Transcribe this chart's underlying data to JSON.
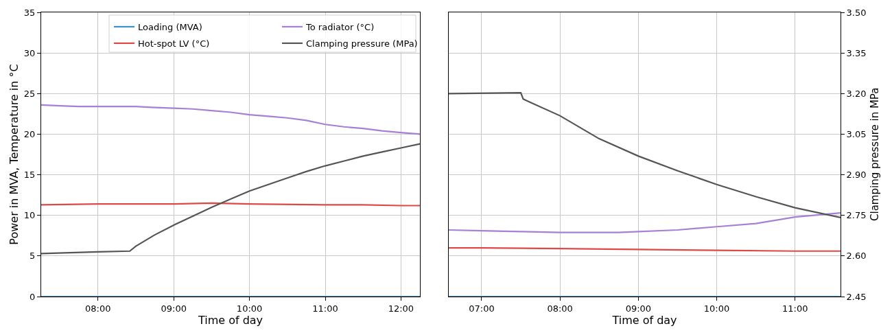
{
  "chart_data": [
    {
      "type": "line",
      "xlabel": "Time of day",
      "ylabel": "Power in MVA, Temperature in °C",
      "xlim": [
        7.25,
        12.25
      ],
      "xticks": [
        {
          "value": 8,
          "label": "08:00"
        },
        {
          "value": 9,
          "label": "09:00"
        },
        {
          "value": 10,
          "label": "10:00"
        },
        {
          "value": 11,
          "label": "11:00"
        },
        {
          "value": 12,
          "label": "12:00"
        }
      ],
      "ylim": [
        0,
        35
      ],
      "yticks": [
        0,
        5,
        10,
        15,
        20,
        25,
        30,
        35
      ],
      "y2lim": [
        2.45,
        3.5
      ],
      "grid": true,
      "legend": "top right",
      "series": [
        {
          "name": "Loading (MVA)",
          "color": "#3a8fd0",
          "x": [
            7.25,
            12.25
          ],
          "values": [
            0,
            0
          ]
        },
        {
          "name": "Hot-spot LV (°C)",
          "color": "#e04848",
          "x": [
            7.25,
            8,
            9,
            9.5,
            10,
            11,
            11.5,
            12,
            12.25
          ],
          "values": [
            11.3,
            11.4,
            11.4,
            11.5,
            11.4,
            11.3,
            11.3,
            11.2,
            11.2
          ]
        },
        {
          "name": "To radiator (°C)",
          "color": "#a67fd6",
          "x": [
            7.25,
            7.5,
            7.75,
            8.5,
            8.7,
            9,
            9.25,
            9.5,
            9.75,
            10,
            10.25,
            10.5,
            10.75,
            11,
            11.25,
            11.5,
            11.75,
            12,
            12.25
          ],
          "values": [
            23.6,
            23.5,
            23.4,
            23.4,
            23.3,
            23.2,
            23.1,
            22.9,
            22.7,
            22.4,
            22.2,
            22.0,
            21.7,
            21.2,
            20.9,
            20.7,
            20.4,
            20.2,
            20.0
          ]
        },
        {
          "name": "Clamping pressure (MPa)",
          "color": "#555555",
          "axis": "y2",
          "x": [
            7.25,
            8,
            8.42,
            8.5,
            8.75,
            9,
            9.25,
            9.5,
            9.75,
            10,
            10.25,
            10.5,
            10.75,
            11,
            11.25,
            11.5,
            11.75,
            12,
            12.25
          ],
          "values": [
            2.609,
            2.615,
            2.618,
            2.636,
            2.678,
            2.714,
            2.747,
            2.78,
            2.81,
            2.84,
            2.864,
            2.888,
            2.912,
            2.933,
            2.951,
            2.969,
            2.984,
            2.999,
            3.014
          ]
        }
      ]
    },
    {
      "type": "line",
      "xlabel": "Time of day",
      "y2label": "Clamping pressure in MPa",
      "xlim": [
        6.58,
        11.58
      ],
      "xticks": [
        {
          "value": 7,
          "label": "07:00"
        },
        {
          "value": 8,
          "label": "08:00"
        },
        {
          "value": 9,
          "label": "09:00"
        },
        {
          "value": 10,
          "label": "10:00"
        },
        {
          "value": 11,
          "label": "11:00"
        }
      ],
      "ylim": [
        0,
        35
      ],
      "y2lim": [
        2.45,
        3.5
      ],
      "y2ticks": [
        {
          "value": 2.45,
          "label": "2.45"
        },
        {
          "value": 2.6,
          "label": "2.60"
        },
        {
          "value": 2.75,
          "label": "2.75"
        },
        {
          "value": 2.9,
          "label": "2.90"
        },
        {
          "value": 3.05,
          "label": "3.05"
        },
        {
          "value": 3.2,
          "label": "3.20"
        },
        {
          "value": 3.35,
          "label": "3.35"
        },
        {
          "value": 3.5,
          "label": "3.50"
        }
      ],
      "grid": true,
      "series": [
        {
          "color": "#3a8fd0",
          "x": [
            6.58,
            11.58
          ],
          "values": [
            0,
            0
          ]
        },
        {
          "color": "#e04848",
          "x": [
            6.58,
            7,
            8,
            9,
            10,
            11,
            11.58
          ],
          "values": [
            6.0,
            6.0,
            5.9,
            5.8,
            5.7,
            5.6,
            5.6
          ]
        },
        {
          "color": "#a67fd6",
          "x": [
            6.58,
            7,
            7.5,
            8,
            8.75,
            9,
            9.5,
            10,
            10.5,
            11,
            11.58
          ],
          "values": [
            8.2,
            8.1,
            8.0,
            7.9,
            7.9,
            8.0,
            8.2,
            8.6,
            9.0,
            9.8,
            10.3
          ]
        },
        {
          "color": "#555555",
          "axis": "y2",
          "x": [
            6.58,
            7.5,
            7.53,
            7.6,
            8,
            8.5,
            9,
            9.5,
            10,
            10.5,
            11,
            11.58
          ],
          "values": [
            3.2,
            3.203,
            3.18,
            3.17,
            3.118,
            3.033,
            2.969,
            2.915,
            2.864,
            2.819,
            2.778,
            2.742
          ]
        }
      ]
    }
  ]
}
